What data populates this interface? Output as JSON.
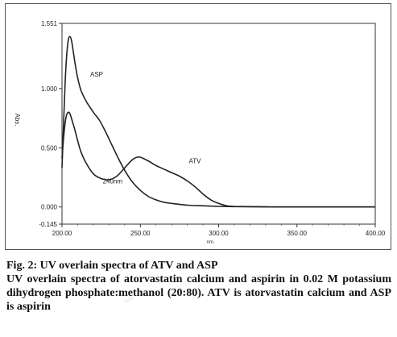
{
  "chart_data": {
    "type": "line",
    "xlabel": "nm.",
    "ylabel": "Abs.",
    "xlim": [
      200,
      400
    ],
    "ylim": [
      -0.145,
      1.551
    ],
    "x_ticks": [
      200,
      250,
      300,
      350,
      400
    ],
    "x_tick_labels": [
      "200.00",
      "250.00",
      "300.00",
      "350.00",
      "400.00"
    ],
    "y_ticks": [
      -0.145,
      0.0,
      0.5,
      1.0,
      1.551
    ],
    "y_tick_labels": [
      "-0.145",
      "0.000",
      "0.500",
      "1.000",
      "1.551"
    ],
    "grid": false,
    "line_color": "#222222",
    "series": [
      {
        "name": "ASP",
        "x": [
          200,
          201,
          202,
          203,
          204,
          205,
          206,
          207,
          208,
          209,
          210,
          212,
          214,
          216,
          218,
          220,
          224,
          228,
          232,
          236,
          240,
          245,
          250,
          255,
          260,
          265,
          270,
          280,
          290,
          300,
          310,
          320,
          330,
          340,
          360,
          380,
          400
        ],
        "y": [
          0.33,
          0.7,
          1.05,
          1.28,
          1.41,
          1.44,
          1.41,
          1.33,
          1.24,
          1.16,
          1.09,
          0.99,
          0.93,
          0.88,
          0.84,
          0.8,
          0.73,
          0.63,
          0.52,
          0.41,
          0.31,
          0.21,
          0.14,
          0.09,
          0.06,
          0.04,
          0.03,
          0.015,
          0.01,
          0.005,
          0.003,
          0.002,
          0.001,
          0.0,
          0.0,
          0.0,
          0.0
        ]
      },
      {
        "name": "ATV",
        "x": [
          200,
          201,
          202,
          203,
          204,
          205,
          206,
          208,
          210,
          212,
          215,
          220,
          225,
          230,
          235,
          240,
          245,
          248,
          250,
          255,
          260,
          265,
          270,
          275,
          280,
          285,
          290,
          295,
          300,
          305,
          310,
          320,
          330,
          340,
          360,
          380,
          400
        ],
        "y": [
          0.41,
          0.58,
          0.71,
          0.78,
          0.8,
          0.79,
          0.75,
          0.66,
          0.56,
          0.47,
          0.38,
          0.28,
          0.24,
          0.23,
          0.26,
          0.33,
          0.4,
          0.42,
          0.42,
          0.39,
          0.35,
          0.32,
          0.29,
          0.26,
          0.22,
          0.17,
          0.11,
          0.06,
          0.03,
          0.01,
          0.005,
          0.003,
          0.001,
          0.0,
          0.0,
          0.0,
          0.0
        ]
      }
    ],
    "annotations": [
      {
        "text": "ASP",
        "x": 218,
        "y": 1.1
      },
      {
        "text": "ATV",
        "x": 281,
        "y": 0.37
      },
      {
        "text": "240nm",
        "x": 226,
        "y": 0.2
      }
    ]
  },
  "caption": {
    "title": "Fig. 2: UV overlain spectra of ATV and ASP",
    "description": "UV overlain spectra of atorvastatin calcium and aspirin in 0.02 M potassium dihydrogen phosphate:methanol (20:80). ATV is atorvastatin calcium and ASP is aspirin"
  }
}
